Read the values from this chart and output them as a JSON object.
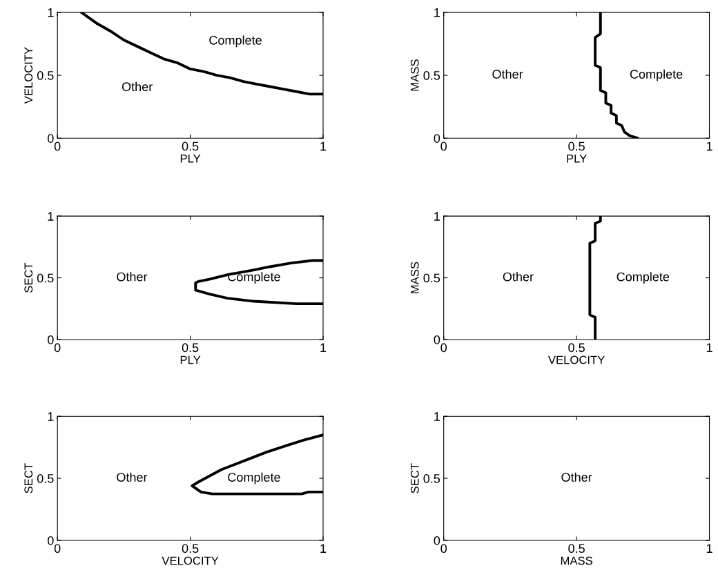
{
  "chart_data": [
    {
      "type": "line",
      "xlabel": "PLY",
      "ylabel": "VELOCITY",
      "xlim": [
        0,
        1
      ],
      "ylim": [
        0,
        1
      ],
      "xticks": [
        0,
        0.5,
        1
      ],
      "yticks": [
        0,
        0.5,
        1
      ],
      "grid": false,
      "series": [
        {
          "color": "#000000",
          "x": [
            0.09,
            0.15,
            0.2,
            0.25,
            0.3,
            0.35,
            0.4,
            0.45,
            0.5,
            0.55,
            0.6,
            0.65,
            0.7,
            0.75,
            0.8,
            0.85,
            0.9,
            0.95,
            1
          ],
          "values": [
            1,
            0.91,
            0.85,
            0.78,
            0.73,
            0.68,
            0.63,
            0.6,
            0.55,
            0.53,
            0.5,
            0.48,
            0.45,
            0.43,
            0.41,
            0.39,
            0.37,
            0.35,
            0.35
          ]
        }
      ],
      "annotations": [
        "Complete",
        "Other"
      ]
    },
    {
      "type": "line",
      "xlabel": "PLY",
      "ylabel": "MASS",
      "xlim": [
        0,
        1
      ],
      "ylim": [
        0,
        1
      ],
      "xticks": [
        0,
        0.5,
        1
      ],
      "yticks": [
        0,
        0.5,
        1
      ],
      "grid": false,
      "series": [
        {
          "color": "#000000",
          "x": [
            0.59,
            0.59,
            0.57,
            0.57,
            0.59,
            0.59,
            0.61,
            0.61,
            0.63,
            0.63,
            0.65,
            0.65,
            0.67,
            0.68,
            0.7,
            0.73
          ],
          "values": [
            1,
            0.83,
            0.8,
            0.58,
            0.56,
            0.38,
            0.36,
            0.28,
            0.26,
            0.2,
            0.18,
            0.12,
            0.1,
            0.05,
            0.02,
            0
          ]
        }
      ],
      "annotations": [
        "Other",
        "Complete"
      ]
    },
    {
      "type": "line",
      "xlabel": "PLY",
      "ylabel": "SECT",
      "xlim": [
        0,
        1
      ],
      "ylim": [
        0,
        1
      ],
      "xticks": [
        0,
        0.5,
        1
      ],
      "yticks": [
        0,
        0.5,
        1
      ],
      "grid": false,
      "series": [
        {
          "color": "#000000",
          "x": [
            1,
            0.96,
            0.88,
            0.8,
            0.73,
            0.64,
            0.575,
            0.53,
            0.52,
            0.52,
            0.57,
            0.64,
            0.74,
            0.9,
            1
          ],
          "values": [
            0.64,
            0.64,
            0.62,
            0.59,
            0.56,
            0.525,
            0.49,
            0.47,
            0.46,
            0.4,
            0.37,
            0.335,
            0.31,
            0.29,
            0.29
          ]
        }
      ],
      "annotations": [
        "Other",
        "Complete"
      ]
    },
    {
      "type": "line",
      "xlabel": "VELOCITY",
      "ylabel": "MASS",
      "xlim": [
        0,
        1
      ],
      "ylim": [
        0,
        1
      ],
      "xticks": [
        0,
        0.5,
        1
      ],
      "yticks": [
        0,
        0.5,
        1
      ],
      "grid": false,
      "series": [
        {
          "color": "#000000",
          "x": [
            0.57,
            0.57,
            0.55,
            0.55,
            0.57,
            0.57,
            0.59,
            0.59
          ],
          "values": [
            0,
            0.18,
            0.2,
            0.78,
            0.8,
            0.94,
            0.96,
            1
          ]
        }
      ],
      "annotations": [
        "Other",
        "Complete"
      ]
    },
    {
      "type": "line",
      "xlabel": "VELOCITY",
      "ylabel": "SECT",
      "xlim": [
        0,
        1
      ],
      "ylim": [
        0,
        1
      ],
      "xticks": [
        0,
        0.5,
        1
      ],
      "yticks": [
        0,
        0.5,
        1
      ],
      "grid": false,
      "series": [
        {
          "color": "#000000",
          "x": [
            1,
            0.93,
            0.87,
            0.785,
            0.71,
            0.617,
            0.53,
            0.507,
            0.54,
            0.583,
            0.92,
            0.945,
            1
          ],
          "values": [
            0.85,
            0.81,
            0.77,
            0.71,
            0.647,
            0.57,
            0.47,
            0.44,
            0.39,
            0.375,
            0.375,
            0.39,
            0.39
          ]
        }
      ],
      "annotations": [
        "Other",
        "Complete"
      ]
    },
    {
      "type": "line",
      "xlabel": "MASS",
      "ylabel": "SECT",
      "xlim": [
        0,
        1
      ],
      "ylim": [
        0,
        1
      ],
      "xticks": [
        0,
        0.5,
        1
      ],
      "yticks": [
        0,
        0.5,
        1
      ],
      "grid": false,
      "annotations": [
        "Other"
      ]
    }
  ]
}
